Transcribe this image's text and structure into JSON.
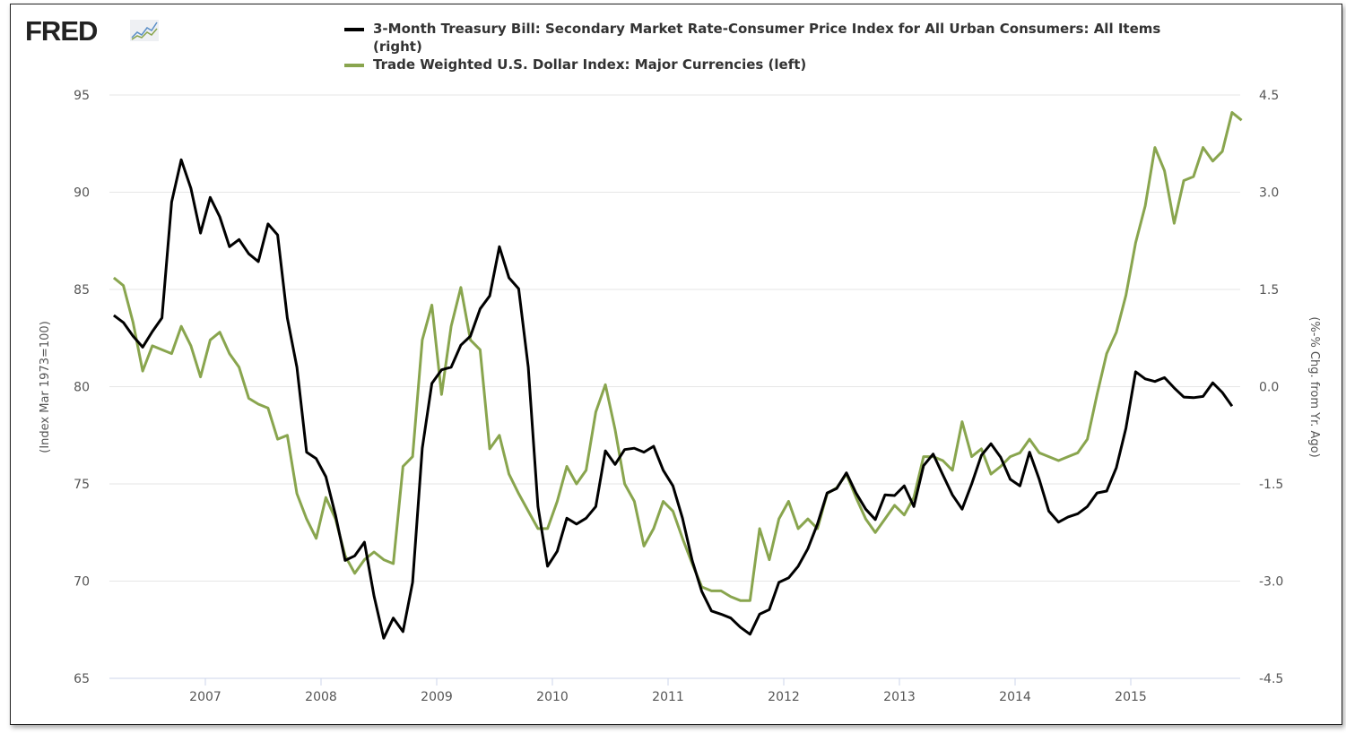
{
  "logo": "FRED",
  "chart_data": {
    "type": "line",
    "title": "",
    "x_start": "2006-03",
    "x_step": "month",
    "xlim": [
      2006.17,
      2015.95
    ],
    "x_ticks": [
      "2007",
      "2008",
      "2009",
      "2010",
      "2011",
      "2012",
      "2013",
      "2014",
      "2015"
    ],
    "left_axis": {
      "label": "(Index Mar 1973=100)",
      "ylim": [
        65,
        95
      ],
      "ticks": [
        "65",
        "70",
        "75",
        "80",
        "85",
        "90",
        "95"
      ]
    },
    "right_axis": {
      "label": "(%-% Chg. from Yr. Ago)",
      "ylim": [
        -4.5,
        4.5
      ],
      "ticks": [
        "-4.5",
        "-3.0",
        "-1.5",
        "0.0",
        "1.5",
        "3.0",
        "4.5"
      ]
    },
    "grid": true,
    "legend_position": "top",
    "series": [
      {
        "name": "3-Month Treasury Bill: Secondary Market Rate-Consumer Price Index for All Urban Consumers: All Items (right)",
        "axis": "right",
        "color": "#000000",
        "values": [
          1.1,
          0.99,
          0.78,
          0.61,
          0.85,
          1.06,
          2.85,
          3.5,
          3.06,
          2.37,
          2.92,
          2.62,
          2.16,
          2.27,
          2.05,
          1.93,
          2.51,
          2.34,
          1.06,
          0.3,
          -1.01,
          -1.11,
          -1.39,
          -1.98,
          -2.68,
          -2.61,
          -2.4,
          -3.23,
          -3.88,
          -3.57,
          -3.78,
          -3.02,
          -0.95,
          0.05,
          0.26,
          0.3,
          0.64,
          0.78,
          1.2,
          1.4,
          2.16,
          1.68,
          1.51,
          0.3,
          -1.85,
          -2.77,
          -2.54,
          -2.03,
          -2.12,
          -2.03,
          -1.85,
          -0.99,
          -1.2,
          -0.97,
          -0.95,
          -1.01,
          -0.92,
          -1.29,
          -1.53,
          -2.03,
          -2.68,
          -3.16,
          -3.46,
          -3.51,
          -3.57,
          -3.71,
          -3.82,
          -3.51,
          -3.44,
          -3.02,
          -2.95,
          -2.77,
          -2.5,
          -2.12,
          -1.64,
          -1.57,
          -1.33,
          -1.64,
          -1.89,
          -2.05,
          -1.67,
          -1.68,
          -1.53,
          -1.85,
          -1.22,
          -1.04,
          -1.36,
          -1.67,
          -1.89,
          -1.5,
          -1.06,
          -0.88,
          -1.09,
          -1.43,
          -1.53,
          -1.01,
          -1.43,
          -1.92,
          -2.09,
          -2.01,
          -1.96,
          -1.85,
          -1.64,
          -1.61,
          -1.25,
          -0.64,
          0.23,
          0.12,
          0.08,
          0.14,
          -0.02,
          -0.16,
          -0.17,
          -0.15,
          0.06,
          -0.09,
          -0.3
        ]
      },
      {
        "name": "Trade Weighted U.S. Dollar Index: Major Currencies (left)",
        "axis": "left",
        "color": "#89a54e",
        "values": [
          85.6,
          85.2,
          83.3,
          80.8,
          82.1,
          81.9,
          81.7,
          83.1,
          82.1,
          80.5,
          82.4,
          82.8,
          81.7,
          81.0,
          79.4,
          79.1,
          78.9,
          77.3,
          77.5,
          74.5,
          73.2,
          72.2,
          74.3,
          73.2,
          71.3,
          70.4,
          71.1,
          71.5,
          71.1,
          70.9,
          75.9,
          76.4,
          82.4,
          84.2,
          79.6,
          83.1,
          85.1,
          82.4,
          81.9,
          76.8,
          77.5,
          75.5,
          74.5,
          73.6,
          72.7,
          72.7,
          74.1,
          75.9,
          75.0,
          75.7,
          78.7,
          80.1,
          77.8,
          75.0,
          74.1,
          71.8,
          72.7,
          74.1,
          73.6,
          72.2,
          70.9,
          69.7,
          69.5,
          69.5,
          69.2,
          69.0,
          69.0,
          72.7,
          71.1,
          73.2,
          74.1,
          72.7,
          73.2,
          72.7,
          74.5,
          74.8,
          75.5,
          74.3,
          73.2,
          72.5,
          73.2,
          73.9,
          73.4,
          74.3,
          76.4,
          76.4,
          76.2,
          75.7,
          78.2,
          76.4,
          76.8,
          75.5,
          75.9,
          76.4,
          76.6,
          77.3,
          76.6,
          76.4,
          76.2,
          76.4,
          76.6,
          77.3,
          79.6,
          81.7,
          82.8,
          84.7,
          87.4,
          89.3,
          92.3,
          91.1,
          88.4,
          90.6,
          90.8,
          92.3,
          91.6,
          92.1,
          94.1,
          93.7
        ]
      }
    ]
  }
}
